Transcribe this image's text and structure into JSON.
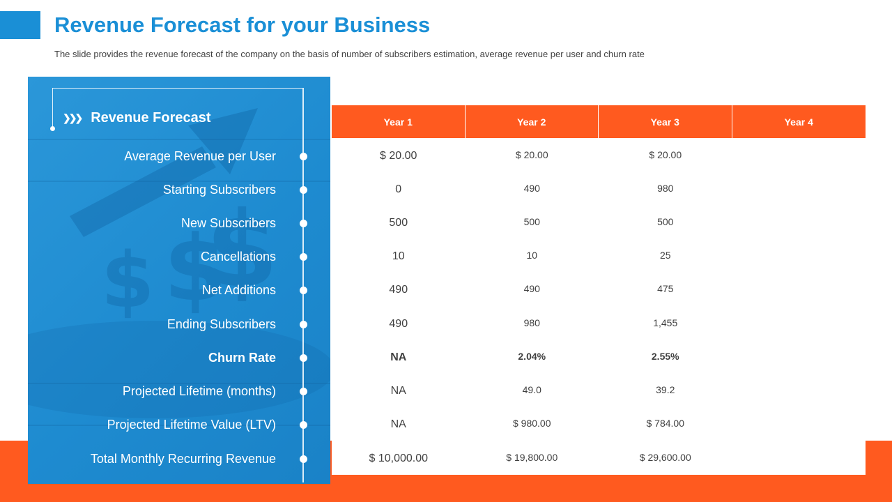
{
  "header": {
    "title": "Revenue Forecast for your Business",
    "subtitle": "The slide provides the revenue forecast of the company on the basis of number of subscribers estimation, average revenue per user and churn rate"
  },
  "panel": {
    "heading": "Revenue Forecast",
    "heading_icon": "double-chevron-icon",
    "background_image": "upward-arrow-and-dollar-signs"
  },
  "table": {
    "columns": [
      "Year 1",
      "Year 2",
      "Year 3",
      "Year 4"
    ],
    "rows": [
      {
        "label": "Average Revenue per User",
        "bold": false,
        "values": [
          "$ 20.00",
          "$ 20.00",
          "$ 20.00",
          ""
        ]
      },
      {
        "label": "Starting Subscribers",
        "bold": false,
        "values": [
          "0",
          "490",
          "980",
          ""
        ]
      },
      {
        "label": "New Subscribers",
        "bold": false,
        "values": [
          "500",
          "500",
          "500",
          ""
        ]
      },
      {
        "label": "Cancellations",
        "bold": false,
        "values": [
          "10",
          "10",
          "25",
          ""
        ]
      },
      {
        "label": "Net Additions",
        "bold": false,
        "values": [
          "490",
          "490",
          "475",
          ""
        ]
      },
      {
        "label": "Ending Subscribers",
        "bold": false,
        "values": [
          "490",
          "980",
          "1,455",
          ""
        ]
      },
      {
        "label": "Churn Rate",
        "bold": true,
        "values": [
          "NA",
          "2.04%",
          "2.55%",
          ""
        ]
      },
      {
        "label": "Projected Lifetime (months)",
        "bold": false,
        "values": [
          "NA",
          "49.0",
          "39.2",
          ""
        ]
      },
      {
        "label": "Projected Lifetime  Value (LTV)",
        "bold": false,
        "values": [
          "NA",
          "$ 980.00",
          "$ 784.00",
          ""
        ]
      },
      {
        "label": "Total Monthly  Recurring Revenue",
        "bold": false,
        "values": [
          "$ 10,000.00",
          "$ 19,800.00",
          "$ 29,600.00",
          ""
        ]
      }
    ]
  },
  "colors": {
    "accent_blue": "#1a8fd6",
    "accent_orange": "#ff5a1f",
    "text_dark": "#404040"
  }
}
